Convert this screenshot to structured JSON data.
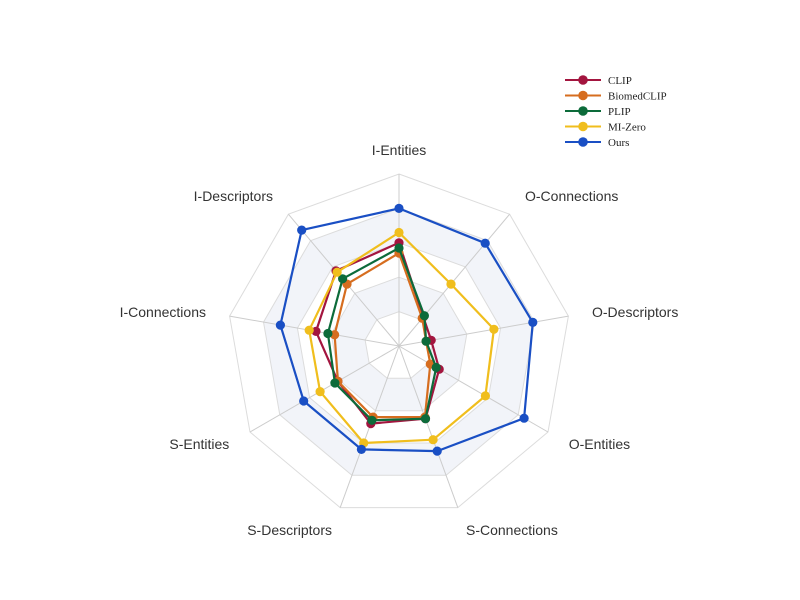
{
  "chart_data": {
    "type": "radar",
    "categories": [
      "I-Entities",
      "O-Connections",
      "O-Descriptors",
      "O-Entities",
      "S-Connections",
      "S-Descriptors",
      "S-Entities",
      "I-Connections",
      "I-Descriptors"
    ],
    "rmax": 100,
    "grid_levels": 5,
    "grid": true,
    "legend_position": "top-right",
    "series": [
      {
        "name": "CLIP",
        "color": "#a3153f",
        "values": [
          60,
          22,
          19,
          27,
          45,
          48,
          41,
          49,
          57
        ]
      },
      {
        "name": "BiomedCLIP",
        "color": "#d66d1f",
        "values": [
          54,
          21,
          16,
          21,
          44,
          44,
          41,
          38,
          47
        ]
      },
      {
        "name": "PLIP",
        "color": "#0c6b3a",
        "values": [
          57,
          23,
          16,
          25,
          45,
          46,
          43,
          42,
          51
        ]
      },
      {
        "name": "MI-Zero",
        "color": "#f0be1d",
        "values": [
          66,
          47,
          56,
          58,
          58,
          60,
          53,
          53,
          56
        ]
      },
      {
        "name": "Ours",
        "color": "#1a4fc4",
        "values": [
          80,
          78,
          79,
          84,
          65,
          64,
          64,
          70,
          88
        ]
      }
    ]
  }
}
